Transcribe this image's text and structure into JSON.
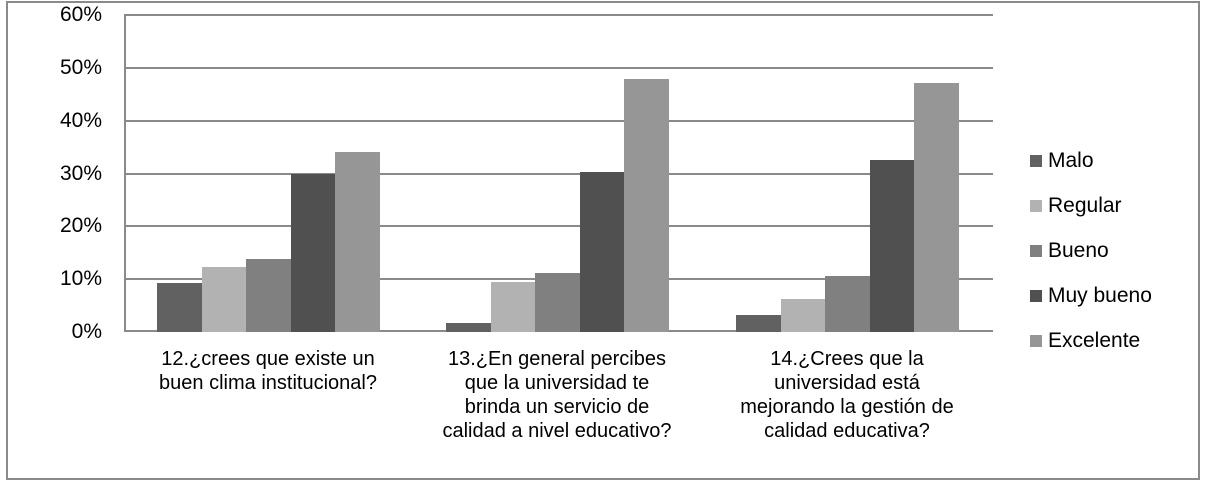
{
  "chart_data": {
    "type": "bar",
    "title": "",
    "xlabel": "",
    "ylabel": "",
    "ylim": [
      0,
      60
    ],
    "yticks": [
      "0%",
      "10%",
      "20%",
      "30%",
      "40%",
      "50%",
      "60%"
    ],
    "grid": true,
    "legend_position": "right",
    "categories": [
      "12.¿crees que existe un\nbuen clima institucional?",
      "13.¿En general percibes\nque la universidad te\nbrinda un servicio de\ncalidad  a nivel educativo?",
      "14.¿Crees que la\nuniversidad está\nmejorando la gestión de\ncalidad educativa?"
    ],
    "series": [
      {
        "name": "Malo",
        "color": "#616161",
        "values": [
          9.3,
          1.7,
          3.2
        ]
      },
      {
        "name": "Regular",
        "color": "#b2b2b2",
        "values": [
          12.3,
          9.5,
          6.3
        ]
      },
      {
        "name": "Bueno",
        "color": "#808080",
        "values": [
          13.8,
          11.2,
          10.6
        ]
      },
      {
        "name": "Muy bueno",
        "color": "#505050",
        "values": [
          30.0,
          30.2,
          32.6
        ]
      },
      {
        "name": "Excelente",
        "color": "#969696",
        "values": [
          34.1,
          47.9,
          47.1
        ]
      }
    ]
  }
}
